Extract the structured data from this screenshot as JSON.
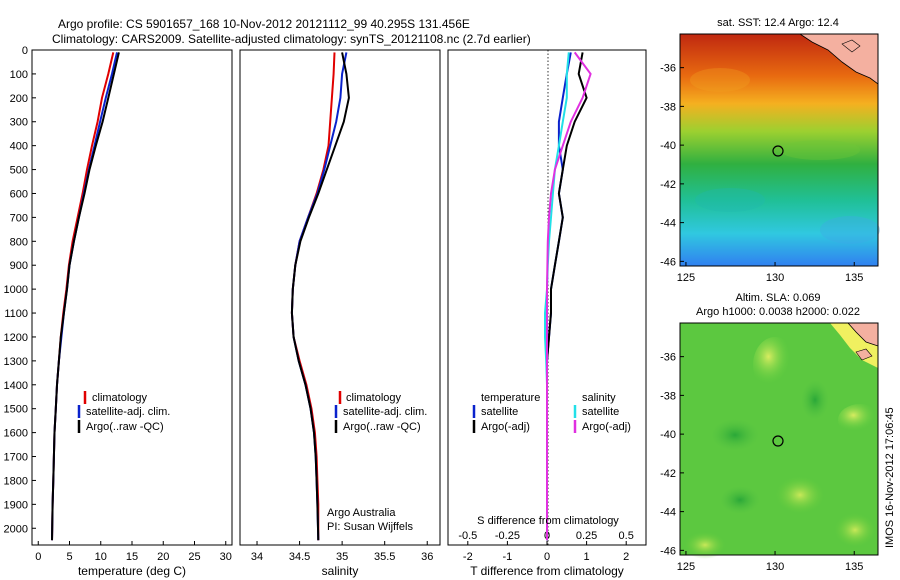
{
  "header": {
    "title_line1": "Argo profile: CS 5901657_168 10-Nov-2012 20121112_99 40.295S 131.456E",
    "title_line2": "Climatology: CARS2009. Satellite-adjusted climatology: synTS_20121108.nc (2.7d earlier)"
  },
  "colors": {
    "climatology": "#e00000",
    "satellite": "#0a22cc",
    "argo": "#000000",
    "sal_satellite": "#22e0e8",
    "sal_argo": "#e030e0"
  },
  "chart_data": [
    {
      "id": "temperature",
      "type": "line",
      "xlabel": "temperature (deg C)",
      "xlim": [
        -1,
        31
      ],
      "xticks": [
        0,
        5,
        10,
        15,
        20,
        25,
        30
      ],
      "ylim": [
        2070,
        0
      ],
      "yticks": [
        0,
        100,
        200,
        300,
        400,
        500,
        600,
        700,
        800,
        900,
        1000,
        1100,
        1200,
        1300,
        1400,
        1500,
        1600,
        1700,
        1800,
        1900,
        2000
      ],
      "legend": [
        "climatology",
        "satellite-adj. clim.",
        "Argo(..raw -QC)"
      ],
      "series": [
        {
          "key": "climatology",
          "x": [
            12.0,
            11.2,
            10.2,
            9.5,
            8.6,
            7.8,
            7.1,
            6.3,
            5.5,
            4.9,
            4.5,
            4.0,
            3.6,
            3.3,
            3.0,
            2.8,
            2.6,
            2.5,
            2.4,
            2.3,
            2.2
          ],
          "y": [
            10,
            100,
            200,
            300,
            400,
            500,
            600,
            700,
            800,
            900,
            1000,
            1100,
            1200,
            1300,
            1400,
            1500,
            1600,
            1700,
            1800,
            1900,
            2050
          ]
        },
        {
          "key": "satellite",
          "x": [
            12.6,
            11.8,
            10.8,
            9.9,
            9.0,
            8.1,
            7.3,
            6.5,
            5.7,
            5.0,
            4.6,
            4.1,
            3.7,
            3.3,
            3.0,
            2.8,
            2.6,
            2.5,
            2.4,
            2.3,
            2.2
          ],
          "y": [
            10,
            100,
            200,
            300,
            400,
            500,
            600,
            700,
            800,
            900,
            1000,
            1100,
            1200,
            1300,
            1400,
            1500,
            1600,
            1700,
            1800,
            1900,
            2050
          ]
        },
        {
          "key": "argo",
          "x": [
            12.9,
            12.1,
            11.2,
            10.3,
            9.2,
            8.2,
            7.4,
            6.5,
            5.7,
            5.0,
            4.6,
            4.1,
            3.6,
            3.3,
            3.0,
            2.8,
            2.6,
            2.5,
            2.4,
            2.3,
            2.2
          ],
          "y": [
            10,
            100,
            200,
            300,
            400,
            500,
            600,
            700,
            800,
            900,
            1000,
            1100,
            1200,
            1300,
            1400,
            1500,
            1600,
            1700,
            1800,
            1900,
            2050
          ]
        }
      ]
    },
    {
      "id": "salinity",
      "type": "line",
      "xlabel": "salinity",
      "xlim": [
        33.8,
        36.15
      ],
      "xticks": [
        34,
        34.5,
        35,
        35.5,
        36
      ],
      "ylim": [
        2070,
        0
      ],
      "legend": [
        "climatology",
        "satellite-adj. clim.",
        "Argo(..raw -QC)"
      ],
      "annotation": [
        "Argo Australia",
        "PI: Susan Wijffels"
      ],
      "series": [
        {
          "key": "climatology",
          "x": [
            34.91,
            34.9,
            34.88,
            34.86,
            34.84,
            34.78,
            34.7,
            34.6,
            34.5,
            34.45,
            34.42,
            34.41,
            34.43,
            34.5,
            34.58,
            34.64,
            34.68,
            34.7,
            34.71,
            34.72,
            34.72
          ],
          "y": [
            10,
            100,
            200,
            300,
            400,
            500,
            600,
            700,
            800,
            900,
            1000,
            1100,
            1200,
            1300,
            1400,
            1500,
            1600,
            1700,
            1800,
            1900,
            2050
          ]
        },
        {
          "key": "satellite",
          "x": [
            35.05,
            35.0,
            34.98,
            34.93,
            34.86,
            34.79,
            34.71,
            34.6,
            34.5,
            34.45,
            34.42,
            34.41,
            34.43,
            34.49,
            34.57,
            34.63,
            34.67,
            34.69,
            34.7,
            34.71,
            34.72
          ],
          "y": [
            10,
            100,
            200,
            300,
            400,
            500,
            600,
            700,
            800,
            900,
            1000,
            1100,
            1200,
            1300,
            1400,
            1500,
            1600,
            1700,
            1800,
            1900,
            2050
          ]
        },
        {
          "key": "argo",
          "x": [
            35.0,
            35.05,
            35.08,
            35.02,
            34.92,
            34.82,
            34.72,
            34.61,
            34.51,
            34.45,
            34.42,
            34.41,
            34.43,
            34.49,
            34.57,
            34.63,
            34.67,
            34.69,
            34.7,
            34.71,
            34.72
          ],
          "y": [
            10,
            100,
            200,
            300,
            400,
            500,
            600,
            700,
            800,
            900,
            1000,
            1100,
            1200,
            1300,
            1400,
            1500,
            1600,
            1700,
            1800,
            1900,
            2050
          ]
        }
      ]
    },
    {
      "id": "difference",
      "type": "line",
      "xlabel": "T difference from climatology",
      "xlabel_top": "S difference from climatology",
      "xlim": [
        -2.5,
        2.5
      ],
      "xticks": [
        -2,
        -1,
        0,
        1,
        2
      ],
      "xticks_top": [
        "-0.5",
        "-0.25",
        "0",
        "0.25",
        "0.5"
      ],
      "ylim": [
        2070,
        0
      ],
      "legend_titles": [
        "temperature",
        "salinity"
      ],
      "legend": [
        "satellite",
        "Argo(-adj)",
        "satellite",
        "Argo(-adj)"
      ],
      "series": [
        {
          "key": "satellite",
          "x": [
            0.6,
            0.5,
            0.4,
            0.3,
            0.3,
            0.4,
            0.3,
            0.4,
            0.3,
            0.2,
            0.1,
            0.1,
            0.05,
            0,
            0,
            0,
            0,
            0,
            0,
            0,
            0
          ],
          "y": [
            10,
            100,
            200,
            300,
            400,
            500,
            600,
            700,
            800,
            900,
            1000,
            1100,
            1200,
            1300,
            1400,
            1500,
            1600,
            1700,
            1800,
            1900,
            2050
          ]
        },
        {
          "key": "argo",
          "x": [
            0.9,
            0.8,
            1.0,
            0.7,
            0.5,
            0.4,
            0.3,
            0.4,
            0.3,
            0.2,
            0.1,
            0.1,
            0.05,
            0,
            0,
            0,
            0,
            0,
            0,
            0,
            0
          ],
          "y": [
            10,
            100,
            200,
            300,
            400,
            500,
            600,
            700,
            800,
            900,
            1000,
            1100,
            1200,
            1300,
            1400,
            1500,
            1600,
            1700,
            1800,
            1900,
            2050
          ]
        },
        {
          "key": "sal_satellite",
          "x": [
            0.55,
            0.5,
            0.5,
            0.4,
            0.3,
            0.2,
            0.15,
            0.1,
            0.05,
            0.02,
            0,
            -0.05,
            -0.05,
            -0.02,
            0,
            0,
            0,
            0,
            0,
            0,
            0
          ],
          "y": [
            10,
            100,
            200,
            300,
            400,
            500,
            600,
            700,
            800,
            900,
            1000,
            1100,
            1200,
            1300,
            1400,
            1500,
            1600,
            1700,
            1800,
            1900,
            2050
          ]
        },
        {
          "key": "sal_argo",
          "x": [
            0.7,
            1.1,
            0.9,
            0.6,
            0.4,
            0.2,
            0.1,
            0.05,
            0.02,
            0.01,
            0,
            0,
            0,
            0,
            0,
            0,
            0,
            0,
            0,
            0,
            0
          ],
          "y": [
            10,
            100,
            200,
            300,
            400,
            500,
            600,
            700,
            800,
            900,
            1000,
            1100,
            1200,
            1300,
            1400,
            1500,
            1600,
            1700,
            1800,
            1900,
            2050
          ]
        }
      ]
    },
    {
      "id": "sst_map",
      "type": "heatmap",
      "title": "sat. SST: 12.4 Argo: 12.4",
      "xticks": [
        "125",
        "130",
        "135"
      ],
      "yticks": [
        "-36",
        "-38",
        "-40",
        "-42",
        "-44",
        "-46"
      ]
    },
    {
      "id": "sla_map",
      "type": "heatmap",
      "title_line1": "Altim. SLA: 0.069",
      "title_line2": "Argo h1000: 0.0038 h2000: 0.022",
      "xticks": [
        "125",
        "130",
        "135"
      ],
      "yticks": [
        "-36",
        "-38",
        "-40",
        "-42",
        "-44",
        "-46"
      ]
    }
  ],
  "footer_stamp": "IMOS 16-Nov-2012 17:06:45"
}
